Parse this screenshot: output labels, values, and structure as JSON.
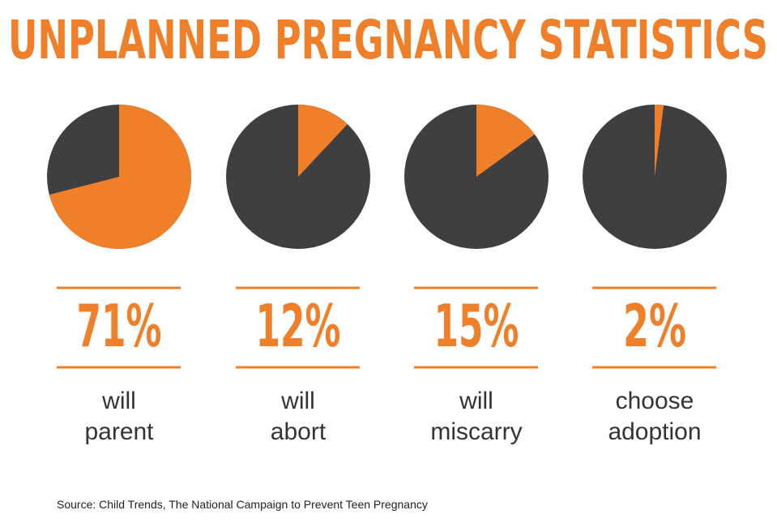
{
  "title": "UNPLANNED PREGNANCY STATISTICS",
  "colors": {
    "accent": "#f07f2a",
    "dark": "#3f3f41"
  },
  "chart_data": [
    {
      "type": "pie",
      "values": [
        71,
        29
      ],
      "label": "71%",
      "caption": [
        "will",
        "parent"
      ]
    },
    {
      "type": "pie",
      "values": [
        12,
        88
      ],
      "label": "12%",
      "caption": [
        "will",
        "abort"
      ]
    },
    {
      "type": "pie",
      "values": [
        15,
        85
      ],
      "label": "15%",
      "caption": [
        "will",
        "miscarry"
      ]
    },
    {
      "type": "pie",
      "values": [
        2,
        98
      ],
      "label": "2%",
      "caption": [
        "choose",
        "adoption"
      ]
    }
  ],
  "source": "Source: Child Trends, The National Campaign to Prevent Teen Pregnancy"
}
